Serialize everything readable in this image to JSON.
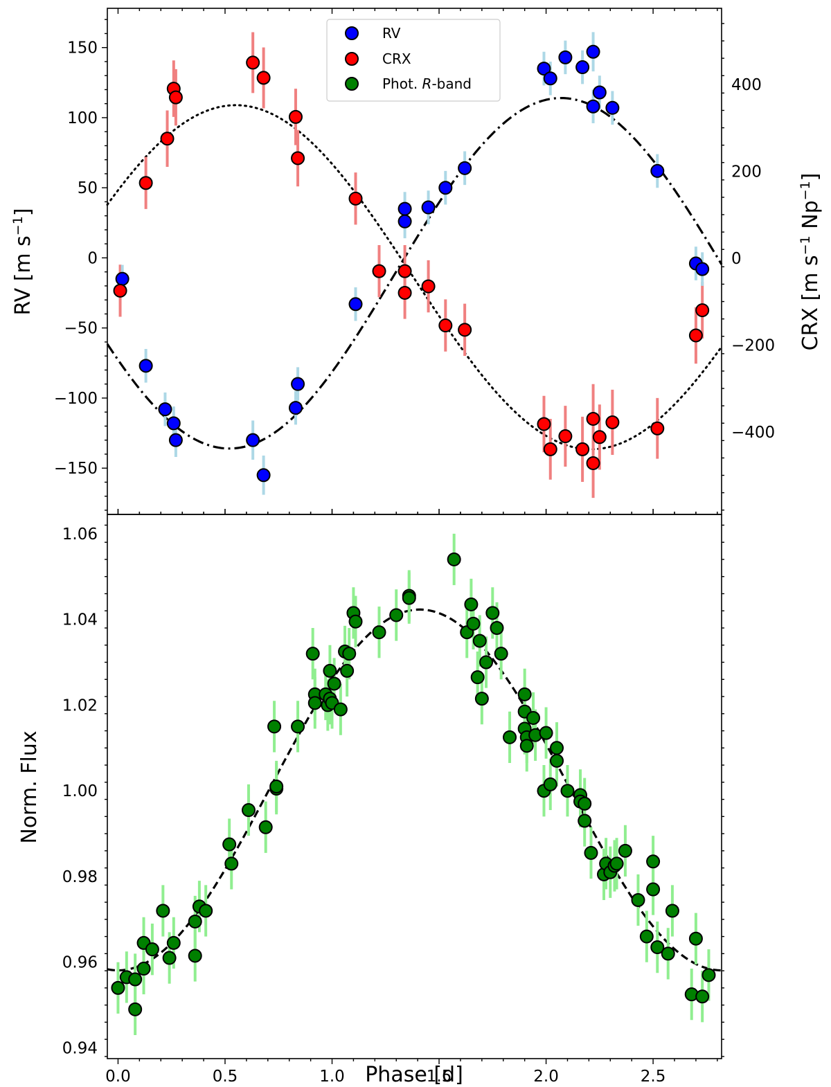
{
  "chart_data": [
    {
      "type": "scatter",
      "panel": "top",
      "xlabel": "",
      "ylabel": "RV [m s$^{-1}$]",
      "ylabel_parts": [
        "RV [m s",
        "−1",
        "]"
      ],
      "y2label": "CRX [m s$^{-1}$ Np$^{-1}$]",
      "y2label_parts": [
        "CRX [m s",
        "−1",
        " Np",
        "−1",
        "]"
      ],
      "xlim": [
        -0.05,
        2.82
      ],
      "ylim": [
        -183,
        178
      ],
      "y2lim": [
        -590,
        575
      ],
      "xticks": [
        0.0,
        0.5,
        1.0,
        1.5,
        2.0,
        2.5
      ],
      "yticks": [
        -150,
        -100,
        -50,
        0,
        50,
        100,
        150
      ],
      "ytick_labels": [
        "−150",
        "−100",
        "−50",
        "0",
        "50",
        "100",
        "150"
      ],
      "y2ticks": [
        -400,
        -200,
        0,
        200,
        400
      ],
      "y2tick_labels": [
        "−400",
        "−200",
        "0",
        "200",
        "400"
      ],
      "legend": {
        "location": "upper-center",
        "entries": [
          {
            "label": "RV",
            "color": "#0000ff"
          },
          {
            "label": "CRX",
            "color": "#ff0000"
          },
          {
            "label_prefix": "Phot. ",
            "label_italic": "R",
            "label_suffix": "-band",
            "color": "#008000"
          }
        ]
      },
      "series": [
        {
          "name": "RV",
          "axis": "left",
          "color": "#0000ff",
          "error_color": "#add8e6",
          "points": [
            [
              0.02,
              -15,
              10
            ],
            [
              0.13,
              -77,
              12
            ],
            [
              0.22,
              -108,
              12
            ],
            [
              0.26,
              -118,
              12
            ],
            [
              0.27,
              -130,
              12
            ],
            [
              0.63,
              -130,
              14
            ],
            [
              0.68,
              -155,
              14
            ],
            [
              0.83,
              -107,
              12
            ],
            [
              0.84,
              -90,
              12
            ],
            [
              1.11,
              -33,
              12
            ],
            [
              1.34,
              35,
              12
            ],
            [
              1.34,
              26,
              12
            ],
            [
              1.45,
              36,
              12
            ],
            [
              1.53,
              50,
              12
            ],
            [
              1.62,
              64,
              12
            ],
            [
              1.99,
              135,
              12
            ],
            [
              2.02,
              128,
              12
            ],
            [
              2.09,
              143,
              12
            ],
            [
              2.17,
              136,
              12
            ],
            [
              2.22,
              108,
              12
            ],
            [
              2.22,
              147,
              14
            ],
            [
              2.25,
              118,
              12
            ],
            [
              2.31,
              107,
              12
            ],
            [
              2.52,
              62,
              12
            ],
            [
              2.7,
              -4,
              12
            ],
            [
              2.73,
              -8,
              12
            ]
          ]
        },
        {
          "name": "CRX",
          "axis": "right",
          "color": "#ff0000",
          "error_color": "#f08080",
          "points": [
            [
              0.01,
              -75,
              60
            ],
            [
              0.13,
              173,
              60
            ],
            [
              0.23,
              275,
              65
            ],
            [
              0.26,
              390,
              65
            ],
            [
              0.27,
              370,
              65
            ],
            [
              0.63,
              450,
              70
            ],
            [
              0.68,
              415,
              70
            ],
            [
              0.83,
              325,
              65
            ],
            [
              0.84,
              230,
              65
            ],
            [
              1.11,
              137,
              60
            ],
            [
              1.22,
              -30,
              60
            ],
            [
              1.34,
              -30,
              60
            ],
            [
              1.34,
              -80,
              60
            ],
            [
              1.45,
              -65,
              60
            ],
            [
              1.53,
              -155,
              60
            ],
            [
              1.62,
              -165,
              60
            ],
            [
              1.99,
              -382,
              65
            ],
            [
              2.02,
              -440,
              70
            ],
            [
              2.09,
              -410,
              70
            ],
            [
              2.17,
              -440,
              75
            ],
            [
              2.22,
              -370,
              80
            ],
            [
              2.22,
              -472,
              80
            ],
            [
              2.25,
              -412,
              75
            ],
            [
              2.31,
              -378,
              75
            ],
            [
              2.52,
              -392,
              70
            ],
            [
              2.7,
              -178,
              65
            ],
            [
              2.73,
              -120,
              65
            ]
          ]
        },
        {
          "name": "RV model",
          "axis": "left",
          "style": "dash-dot",
          "color": "#000000",
          "model": {
            "offset": -11,
            "amplitude": 125,
            "period": 3.1,
            "phase_of_minimum": 0.52
          }
        },
        {
          "name": "CRX model",
          "axis": "right",
          "style": "dotted",
          "color": "#000000",
          "model": {
            "offset": -44,
            "amplitude": 396,
            "period": 3.32,
            "phase_of_maximum": 0.55
          }
        }
      ]
    },
    {
      "type": "scatter",
      "panel": "bottom",
      "xlabel": "Phase [d]",
      "ylabel": "Norm. Flux",
      "xlim": [
        -0.05,
        2.82
      ],
      "ylim": [
        0.9375,
        1.0645
      ],
      "xticks": [
        0.0,
        0.5,
        1.0,
        1.5,
        2.0,
        2.5
      ],
      "xtick_labels": [
        "0.0",
        "0.5",
        "1.0",
        "1.5",
        "2.0",
        "2.5"
      ],
      "yticks": [
        0.94,
        0.96,
        0.98,
        1.0,
        1.02,
        1.04,
        1.06
      ],
      "ytick_labels": [
        "0.94",
        "0.96",
        "0.98",
        "1.00",
        "1.02",
        "1.04",
        "1.06"
      ],
      "series": [
        {
          "name": "Phot. R-band",
          "color": "#008000",
          "error_color": "#90ee90",
          "yerr": 0.006,
          "points": [
            [
              0.0,
              0.954
            ],
            [
              0.04,
              0.9565
            ],
            [
              0.08,
              0.949
            ],
            [
              0.08,
              0.956
            ],
            [
              0.12,
              0.9645
            ],
            [
              0.12,
              0.9585
            ],
            [
              0.16,
              0.963
            ],
            [
              0.21,
              0.972
            ],
            [
              0.24,
              0.961
            ],
            [
              0.26,
              0.9645
            ],
            [
              0.36,
              0.9615
            ],
            [
              0.36,
              0.9695
            ],
            [
              0.38,
              0.973
            ],
            [
              0.41,
              0.972
            ],
            [
              0.52,
              0.9875
            ],
            [
              0.53,
              0.983
            ],
            [
              0.61,
              0.9955
            ],
            [
              0.69,
              0.9915
            ],
            [
              0.73,
              1.015
            ],
            [
              0.74,
              1.0005
            ],
            [
              0.74,
              1.001
            ],
            [
              0.84,
              1.015
            ],
            [
              0.91,
              1.032
            ],
            [
              0.92,
              1.0225
            ],
            [
              0.92,
              1.0205
            ],
            [
              0.97,
              1.0225
            ],
            [
              0.98,
              1.02
            ],
            [
              0.99,
              1.028
            ],
            [
              0.99,
              1.0215
            ],
            [
              1.0,
              1.0205
            ],
            [
              1.01,
              1.025
            ],
            [
              1.04,
              1.019
            ],
            [
              1.06,
              1.0325
            ],
            [
              1.07,
              1.028
            ],
            [
              1.08,
              1.032
            ],
            [
              1.1,
              1.0415
            ],
            [
              1.11,
              1.0395
            ],
            [
              1.22,
              1.037
            ],
            [
              1.3,
              1.041
            ],
            [
              1.36,
              1.0455
            ],
            [
              1.36,
              1.045
            ],
            [
              1.57,
              1.054
            ],
            [
              1.63,
              1.037
            ],
            [
              1.65,
              1.0435
            ],
            [
              1.66,
              1.039
            ],
            [
              1.68,
              1.0265
            ],
            [
              1.69,
              1.035
            ],
            [
              1.7,
              1.0215
            ],
            [
              1.72,
              1.03
            ],
            [
              1.75,
              1.0415
            ],
            [
              1.77,
              1.038
            ],
            [
              1.79,
              1.032
            ],
            [
              1.83,
              1.0125
            ],
            [
              1.9,
              1.0225
            ],
            [
              1.9,
              1.0185
            ],
            [
              1.9,
              1.0145
            ],
            [
              1.91,
              1.0125
            ],
            [
              1.91,
              1.0105
            ],
            [
              1.94,
              1.017
            ],
            [
              1.95,
              1.013
            ],
            [
              1.99,
              1.0
            ],
            [
              2.0,
              1.0135
            ],
            [
              2.02,
              1.0015
            ],
            [
              2.05,
              1.01
            ],
            [
              2.05,
              1.007
            ],
            [
              2.1,
              1.0
            ],
            [
              2.16,
              0.999
            ],
            [
              2.16,
              0.9975
            ],
            [
              2.18,
              0.997
            ],
            [
              2.18,
              0.993
            ],
            [
              2.21,
              0.9855
            ],
            [
              2.27,
              0.9805
            ],
            [
              2.28,
              0.983
            ],
            [
              2.3,
              0.981
            ],
            [
              2.32,
              0.9825
            ],
            [
              2.33,
              0.983
            ],
            [
              2.37,
              0.986
            ],
            [
              2.43,
              0.9745
            ],
            [
              2.47,
              0.966
            ],
            [
              2.5,
              0.9835
            ],
            [
              2.5,
              0.977
            ],
            [
              2.52,
              0.9635
            ],
            [
              2.57,
              0.962
            ],
            [
              2.59,
              0.972
            ],
            [
              2.68,
              0.9525
            ],
            [
              2.7,
              0.9655
            ],
            [
              2.73,
              0.952
            ],
            [
              2.76,
              0.957
            ]
          ]
        },
        {
          "name": "Flux model",
          "style": "dashed",
          "color": "#000000",
          "model": {
            "offset": 1.0002,
            "amplitude": 0.0421,
            "period": 2.82,
            "phase_of_maximum": 1.41
          }
        }
      ]
    }
  ]
}
